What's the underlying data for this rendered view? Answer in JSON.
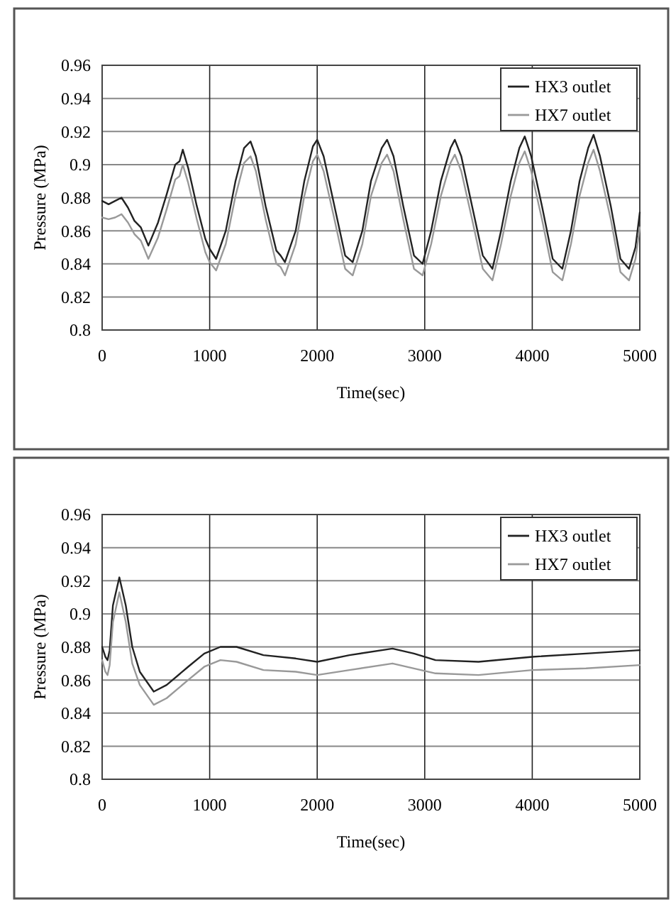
{
  "chart_data": [
    {
      "type": "line",
      "xlabel": "Time(sec)",
      "ylabel": "Pressure (MPa)",
      "xlim": [
        0,
        5000
      ],
      "xticks": [
        0,
        1000,
        2000,
        3000,
        4000,
        5000
      ],
      "ylim": [
        0.8,
        0.96
      ],
      "yticks": [
        0.8,
        0.82,
        0.84,
        0.86,
        0.88,
        0.9,
        0.92,
        0.94,
        0.96
      ],
      "grid": true,
      "legend": "top right",
      "series": [
        {
          "name": "HX3 outlet",
          "color": "#222222",
          "x": [
            0,
            60,
            120,
            180,
            240,
            300,
            360,
            430,
            520,
            600,
            680,
            720,
            750,
            800,
            880,
            960,
            1000,
            1060,
            1150,
            1240,
            1320,
            1380,
            1430,
            1520,
            1620,
            1660,
            1700,
            1800,
            1880,
            1960,
            2000,
            2060,
            2160,
            2260,
            2330,
            2420,
            2500,
            2600,
            2650,
            2710,
            2800,
            2900,
            2980,
            3060,
            3150,
            3240,
            3280,
            3340,
            3440,
            3540,
            3630,
            3710,
            3800,
            3880,
            3930,
            3990,
            4090,
            4190,
            4280,
            4360,
            4440,
            4520,
            4570,
            4630,
            4730,
            4820,
            4900,
            4960,
            5000
          ],
          "values": [
            0.878,
            0.876,
            0.878,
            0.88,
            0.874,
            0.866,
            0.862,
            0.851,
            0.865,
            0.882,
            0.9,
            0.902,
            0.909,
            0.898,
            0.875,
            0.855,
            0.849,
            0.843,
            0.86,
            0.89,
            0.91,
            0.914,
            0.905,
            0.875,
            0.848,
            0.845,
            0.841,
            0.86,
            0.89,
            0.911,
            0.915,
            0.905,
            0.875,
            0.845,
            0.841,
            0.86,
            0.89,
            0.91,
            0.915,
            0.905,
            0.875,
            0.845,
            0.84,
            0.86,
            0.89,
            0.91,
            0.915,
            0.905,
            0.875,
            0.845,
            0.837,
            0.86,
            0.89,
            0.91,
            0.917,
            0.905,
            0.875,
            0.843,
            0.837,
            0.86,
            0.89,
            0.91,
            0.918,
            0.905,
            0.875,
            0.843,
            0.837,
            0.85,
            0.871
          ]
        },
        {
          "name": "HX7 outlet",
          "color": "#999999",
          "x": [
            0,
            60,
            120,
            180,
            240,
            300,
            360,
            430,
            520,
            600,
            680,
            720,
            750,
            800,
            880,
            960,
            1000,
            1060,
            1150,
            1240,
            1320,
            1380,
            1430,
            1520,
            1620,
            1660,
            1700,
            1800,
            1880,
            1960,
            2000,
            2060,
            2160,
            2260,
            2330,
            2420,
            2500,
            2600,
            2650,
            2710,
            2800,
            2900,
            2980,
            3060,
            3150,
            3240,
            3280,
            3340,
            3440,
            3540,
            3630,
            3710,
            3800,
            3880,
            3930,
            3990,
            4090,
            4190,
            4280,
            4360,
            4440,
            4520,
            4570,
            4630,
            4730,
            4820,
            4900,
            4960,
            5000
          ],
          "values": [
            0.868,
            0.867,
            0.868,
            0.87,
            0.865,
            0.858,
            0.854,
            0.843,
            0.856,
            0.873,
            0.891,
            0.893,
            0.9,
            0.889,
            0.867,
            0.847,
            0.841,
            0.836,
            0.852,
            0.881,
            0.901,
            0.905,
            0.896,
            0.867,
            0.84,
            0.838,
            0.833,
            0.852,
            0.881,
            0.902,
            0.906,
            0.896,
            0.867,
            0.837,
            0.833,
            0.852,
            0.881,
            0.901,
            0.906,
            0.896,
            0.867,
            0.837,
            0.833,
            0.852,
            0.881,
            0.901,
            0.906,
            0.896,
            0.867,
            0.837,
            0.83,
            0.852,
            0.881,
            0.901,
            0.908,
            0.896,
            0.867,
            0.835,
            0.83,
            0.852,
            0.881,
            0.901,
            0.909,
            0.896,
            0.867,
            0.835,
            0.83,
            0.843,
            0.862
          ]
        }
      ]
    },
    {
      "type": "line",
      "xlabel": "Time(sec)",
      "ylabel": "Pressure (MPa)",
      "xlim": [
        0,
        5000
      ],
      "xticks": [
        0,
        1000,
        2000,
        3000,
        4000,
        5000
      ],
      "ylim": [
        0.8,
        0.96
      ],
      "yticks": [
        0.8,
        0.82,
        0.84,
        0.86,
        0.88,
        0.9,
        0.92,
        0.94,
        0.96
      ],
      "grid": true,
      "legend": "top right",
      "series": [
        {
          "name": "HX3 outlet",
          "color": "#222222",
          "x": [
            0,
            30,
            50,
            70,
            100,
            160,
            220,
            280,
            350,
            480,
            600,
            800,
            950,
            1100,
            1250,
            1500,
            1800,
            2000,
            2300,
            2700,
            2900,
            3100,
            3500,
            4000,
            4500,
            5000
          ],
          "values": [
            0.88,
            0.874,
            0.872,
            0.878,
            0.905,
            0.922,
            0.905,
            0.88,
            0.865,
            0.853,
            0.857,
            0.868,
            0.876,
            0.88,
            0.88,
            0.875,
            0.873,
            0.871,
            0.875,
            0.879,
            0.876,
            0.872,
            0.871,
            0.874,
            0.876,
            0.878
          ]
        },
        {
          "name": "HX7 outlet",
          "color": "#999999",
          "x": [
            0,
            30,
            50,
            70,
            100,
            160,
            220,
            280,
            350,
            480,
            600,
            800,
            950,
            1100,
            1250,
            1500,
            1800,
            2000,
            2300,
            2700,
            2900,
            3100,
            3500,
            4000,
            4500,
            5000
          ],
          "values": [
            0.872,
            0.865,
            0.863,
            0.869,
            0.895,
            0.913,
            0.895,
            0.87,
            0.857,
            0.845,
            0.849,
            0.86,
            0.868,
            0.872,
            0.871,
            0.866,
            0.865,
            0.863,
            0.866,
            0.87,
            0.867,
            0.864,
            0.863,
            0.866,
            0.867,
            0.869
          ]
        }
      ]
    }
  ]
}
